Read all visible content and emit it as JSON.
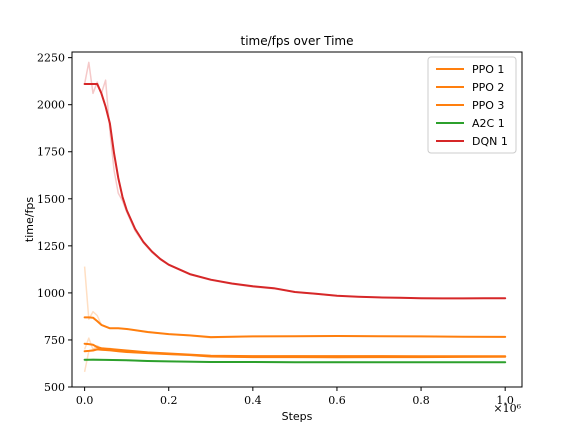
{
  "chart_data": {
    "type": "line",
    "title": "time/fps over Time",
    "xlabel": "Steps",
    "ylabel": "time/fps",
    "x_multiplier_label": "×10⁶",
    "xlim": [
      -0.03,
      1.04
    ],
    "ylim": [
      500,
      2280
    ],
    "xticks": [
      0.0,
      0.2,
      0.4,
      0.6,
      0.8,
      1.0
    ],
    "xtick_labels": [
      "0.0",
      "0.2",
      "0.4",
      "0.6",
      "0.8",
      "1.0"
    ],
    "yticks": [
      500,
      750,
      1000,
      1250,
      1500,
      1750,
      2000,
      2250
    ],
    "ytick_labels": [
      "500",
      "750",
      "1000",
      "1250",
      "1500",
      "1750",
      "2000",
      "2250"
    ],
    "legend_position": "top-right",
    "grid": false,
    "series": [
      {
        "name": "PPO 1",
        "color": "#ff7f0e",
        "x": [
          0.0,
          0.01,
          0.02,
          0.03,
          0.04,
          0.06,
          0.08,
          0.1,
          0.15,
          0.2,
          0.25,
          0.3,
          0.4,
          0.5,
          0.6,
          0.7,
          0.8,
          0.9,
          1.0
        ],
        "values": [
          730,
          728,
          725,
          712,
          706,
          702,
          698,
          694,
          684,
          678,
          672,
          666,
          664,
          664,
          664,
          664,
          663,
          663,
          663
        ],
        "raw_values": [
          700,
          760,
          700,
          720,
          700,
          705,
          695,
          690,
          684,
          676,
          670,
          665,
          662,
          665,
          662,
          665,
          662,
          664,
          663
        ]
      },
      {
        "name": "PPO 2",
        "color": "#ff7f0e",
        "x": [
          0.0,
          0.01,
          0.02,
          0.03,
          0.04,
          0.06,
          0.08,
          0.1,
          0.15,
          0.2,
          0.25,
          0.3,
          0.4,
          0.5,
          0.6,
          0.7,
          0.8,
          0.9,
          1.0
        ],
        "values": [
          870,
          870,
          868,
          850,
          830,
          812,
          812,
          808,
          792,
          781,
          774,
          765,
          769,
          770,
          771,
          770,
          769,
          767,
          766
        ],
        "raw_values": [
          1140,
          860,
          900,
          880,
          830,
          812,
          812,
          808,
          790,
          781,
          772,
          762,
          769,
          770,
          772,
          770,
          768,
          767,
          766
        ]
      },
      {
        "name": "PPO 3",
        "color": "#ff7f0e",
        "x": [
          0.0,
          0.01,
          0.02,
          0.03,
          0.04,
          0.06,
          0.08,
          0.1,
          0.15,
          0.2,
          0.25,
          0.3,
          0.4,
          0.5,
          0.6,
          0.7,
          0.8,
          0.9,
          1.0
        ],
        "values": [
          690,
          692,
          694,
          700,
          698,
          695,
          690,
          686,
          680,
          675,
          670,
          662,
          659,
          659,
          658,
          659,
          659,
          660,
          661
        ],
        "raw_values": [
          580,
          690,
          700,
          705,
          698,
          693,
          690,
          686,
          680,
          674,
          668,
          660,
          658,
          660,
          657,
          660,
          658,
          660,
          661
        ]
      },
      {
        "name": "A2C 1",
        "color": "#2ca02c",
        "x": [
          0.0,
          0.02,
          0.05,
          0.1,
          0.15,
          0.2,
          0.3,
          0.4,
          0.5,
          0.6,
          0.7,
          0.8,
          0.9,
          1.0
        ],
        "values": [
          645,
          645,
          644,
          642,
          638,
          636,
          633,
          633,
          632,
          632,
          632,
          632,
          632,
          632
        ],
        "raw_values": [
          640,
          648,
          644,
          642,
          637,
          636,
          633,
          634,
          632,
          633,
          632,
          632,
          632,
          632
        ]
      },
      {
        "name": "DQN 1",
        "color": "#d62728",
        "x": [
          0.0,
          0.01,
          0.02,
          0.03,
          0.04,
          0.05,
          0.06,
          0.07,
          0.08,
          0.09,
          0.1,
          0.12,
          0.14,
          0.16,
          0.18,
          0.2,
          0.25,
          0.3,
          0.35,
          0.4,
          0.45,
          0.5,
          0.55,
          0.6,
          0.65,
          0.7,
          0.75,
          0.8,
          0.85,
          0.9,
          0.95,
          1.0
        ],
        "values": [
          2110,
          2110,
          2110,
          2110,
          2060,
          1990,
          1900,
          1740,
          1610,
          1510,
          1440,
          1340,
          1270,
          1220,
          1180,
          1150,
          1100,
          1070,
          1050,
          1035,
          1025,
          1005,
          995,
          985,
          980,
          976,
          974,
          972,
          971,
          971,
          972,
          972
        ],
        "raw_values": [
          2110,
          2225,
          2060,
          2120,
          2060,
          2130,
          1860,
          1650,
          1530,
          1490,
          1430,
          1330,
          1265,
          1215,
          1178,
          1148,
          1098,
          1068,
          1048,
          1032,
          1022,
          1004,
          994,
          984,
          980,
          976,
          973,
          971,
          971,
          971,
          972,
          972
        ]
      }
    ]
  }
}
